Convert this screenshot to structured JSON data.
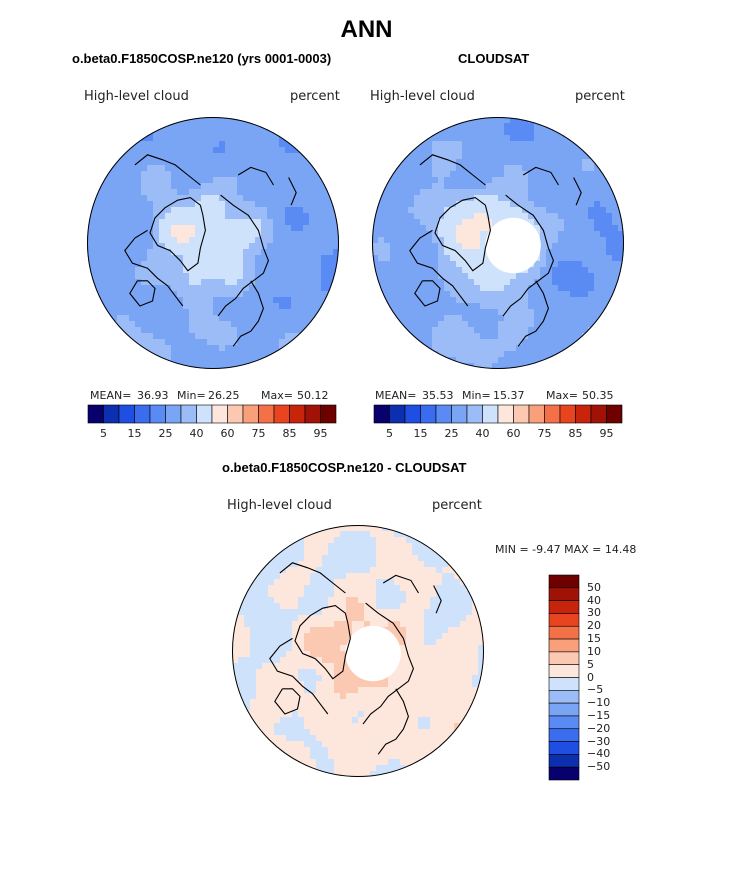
{
  "page_title": "ANN",
  "chart_data": [
    {
      "type": "heatmap",
      "projection": "north-polar-stereographic",
      "title": "o.beta0.F1850COSP.ne120 (yrs 0001-0003)",
      "variable": "High-level cloud",
      "units": "percent",
      "mean_label": "MEAN=",
      "mean": "36.93",
      "min_label": "Min=",
      "min": "26.25",
      "max_label": "Max=",
      "max": "50.12",
      "colorbar_labels": [
        "5",
        "15",
        "25",
        "40",
        "60",
        "75",
        "85",
        "95"
      ],
      "field": {
        "base": 32,
        "arctic": 44,
        "greenland": 46,
        "pacific": 36,
        "atlantic": 34,
        "land_south": 30,
        "missing_pole": false
      }
    },
    {
      "type": "heatmap",
      "projection": "north-polar-stereographic",
      "title": "CLOUDSAT",
      "variable": "High-level cloud",
      "units": "percent",
      "mean_label": "MEAN=",
      "mean": "35.53",
      "min_label": "Min=",
      "min": "15.37",
      "max_label": "Max=",
      "max": "50.35",
      "colorbar_labels": [
        "5",
        "15",
        "25",
        "40",
        "60",
        "75",
        "85",
        "95"
      ],
      "field": {
        "base": 32,
        "arctic": 46,
        "greenland": 50,
        "pacific": 38,
        "atlantic": 36,
        "land_south": 28,
        "missing_pole": true
      }
    },
    {
      "type": "heatmap",
      "projection": "north-polar-stereographic",
      "title": "o.beta0.F1850COSP.ne120 - CLOUDSAT",
      "variable": "High-level cloud",
      "units": "percent",
      "minmax_label": "MIN =  -9.47 MAX =  14.48",
      "colorbar_labels": [
        "50",
        "40",
        "30",
        "20",
        "15",
        "10",
        "5",
        "0",
        "−5",
        "−10",
        "−15",
        "−20",
        "−30",
        "−40",
        "−50"
      ],
      "field": {
        "base": 0,
        "arctic": 6,
        "greenland": 4,
        "pacific": 2,
        "atlantic": -2,
        "land_south": 3,
        "missing_pole": true
      }
    }
  ],
  "colors": {
    "abs_scale": [
      "#08006c",
      "#0c2fb0",
      "#1f4fe2",
      "#3a6cf0",
      "#5a8af3",
      "#7aa4f4",
      "#9bbcf6",
      "#cfe2fb",
      "#fde6dc",
      "#fbc9b2",
      "#f9a07a",
      "#f47148",
      "#e84420",
      "#c8240c",
      "#a01206",
      "#6e0000"
    ],
    "diff_scale": [
      "#08006c",
      "#0c2fb0",
      "#1f4fe2",
      "#3a6cf0",
      "#5a8af3",
      "#7aa4f4",
      "#9bbcf6",
      "#cfe2fb",
      "#fde6dc",
      "#fbc9b2",
      "#f9a07a",
      "#f47148",
      "#e84420",
      "#c8240c",
      "#a01206",
      "#6e0000"
    ]
  }
}
